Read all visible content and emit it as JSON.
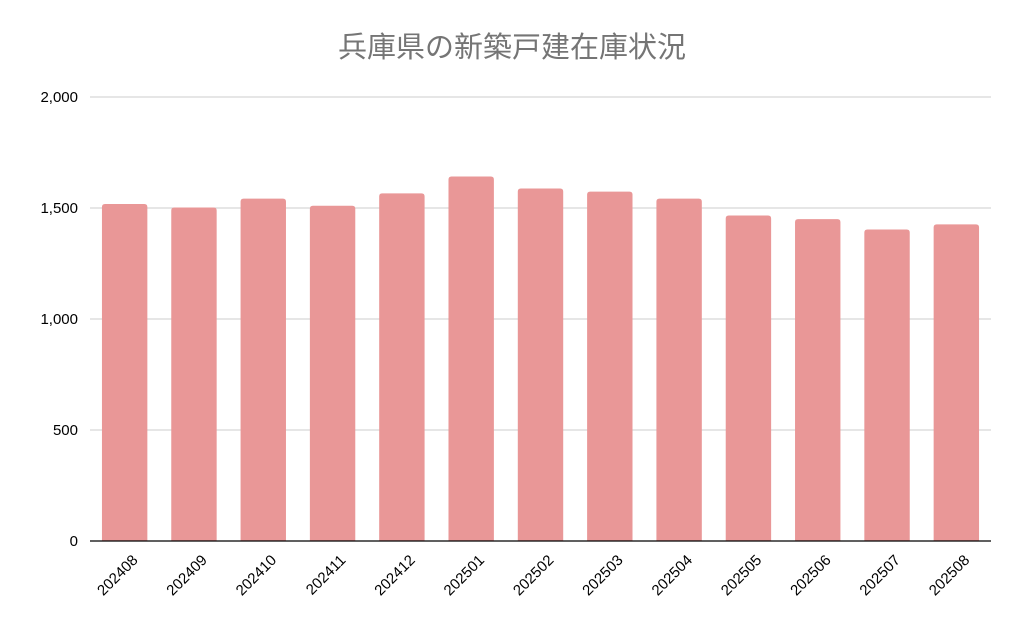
{
  "chart_data": {
    "type": "bar",
    "title": "兵庫県の新築戸建在庫状況",
    "xlabel": "",
    "ylabel": "",
    "categories": [
      "202408",
      "202409",
      "202410",
      "202411",
      "202412",
      "202501",
      "202502",
      "202503",
      "202504",
      "202505",
      "202506",
      "202507",
      "202508"
    ],
    "values": [
      1518,
      1502,
      1542,
      1510,
      1566,
      1642,
      1588,
      1574,
      1542,
      1466,
      1450,
      1403,
      1426
    ],
    "ylim": [
      0,
      2000
    ],
    "yticks": [
      0,
      500,
      1000,
      1500,
      2000
    ],
    "ytick_labels": [
      "0",
      "500",
      "1,000",
      "1,500",
      "2,000"
    ],
    "grid": true,
    "legend": "none",
    "bar_color": "#e99797",
    "grid_color": "#cccccc",
    "axis_color": "#000000",
    "title_color": "#757575"
  }
}
